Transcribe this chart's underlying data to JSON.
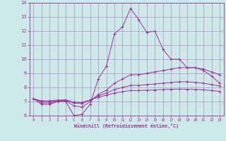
{
  "xlabel": "Windchill (Refroidissement éolien,°C)",
  "bg_color": "#cce8e8",
  "line_color": "#993399",
  "xlim": [
    -0.5,
    23.5
  ],
  "ylim": [
    6,
    14
  ],
  "xticks": [
    0,
    1,
    2,
    3,
    4,
    5,
    6,
    7,
    8,
    9,
    10,
    11,
    12,
    13,
    14,
    15,
    16,
    17,
    18,
    19,
    20,
    21,
    22,
    23
  ],
  "yticks": [
    6,
    7,
    8,
    9,
    10,
    11,
    12,
    13,
    14
  ],
  "series": [
    {
      "x": [
        0,
        1,
        2,
        3,
        4,
        5,
        6,
        7,
        8,
        9,
        10,
        11,
        12,
        13,
        14,
        15,
        16,
        17,
        18,
        19,
        20,
        21,
        22,
        23
      ],
      "y": [
        7.2,
        6.8,
        6.8,
        7.0,
        7.0,
        6.0,
        6.1,
        6.8,
        8.6,
        9.5,
        11.8,
        12.3,
        13.6,
        12.8,
        11.9,
        12.0,
        10.7,
        10.0,
        10.0,
        9.4,
        9.4,
        9.2,
        8.8,
        8.3
      ]
    },
    {
      "x": [
        0,
        1,
        2,
        3,
        4,
        5,
        6,
        7,
        8,
        9,
        10,
        11,
        12,
        13,
        14,
        15,
        16,
        17,
        18,
        19,
        20,
        21,
        22,
        23
      ],
      "y": [
        7.2,
        6.9,
        6.9,
        7.0,
        7.05,
        6.7,
        6.6,
        7.0,
        7.5,
        7.8,
        8.3,
        8.6,
        8.9,
        8.9,
        9.0,
        9.1,
        9.2,
        9.3,
        9.4,
        9.4,
        9.4,
        9.3,
        9.1,
        8.9
      ]
    },
    {
      "x": [
        0,
        1,
        2,
        3,
        4,
        5,
        6,
        7,
        8,
        9,
        10,
        11,
        12,
        13,
        14,
        15,
        16,
        17,
        18,
        19,
        20,
        21,
        22,
        23
      ],
      "y": [
        7.2,
        7.0,
        7.0,
        7.05,
        7.1,
        6.9,
        6.85,
        7.1,
        7.4,
        7.6,
        7.85,
        8.0,
        8.15,
        8.15,
        8.2,
        8.25,
        8.3,
        8.35,
        8.4,
        8.4,
        8.35,
        8.3,
        8.2,
        8.1
      ]
    },
    {
      "x": [
        0,
        1,
        2,
        3,
        4,
        5,
        6,
        7,
        8,
        9,
        10,
        11,
        12,
        13,
        14,
        15,
        16,
        17,
        18,
        19,
        20,
        21,
        22,
        23
      ],
      "y": [
        7.2,
        7.05,
        7.05,
        7.1,
        7.12,
        6.95,
        6.93,
        7.12,
        7.3,
        7.45,
        7.6,
        7.7,
        7.78,
        7.78,
        7.8,
        7.82,
        7.85,
        7.87,
        7.88,
        7.87,
        7.85,
        7.83,
        7.78,
        7.72
      ]
    }
  ]
}
